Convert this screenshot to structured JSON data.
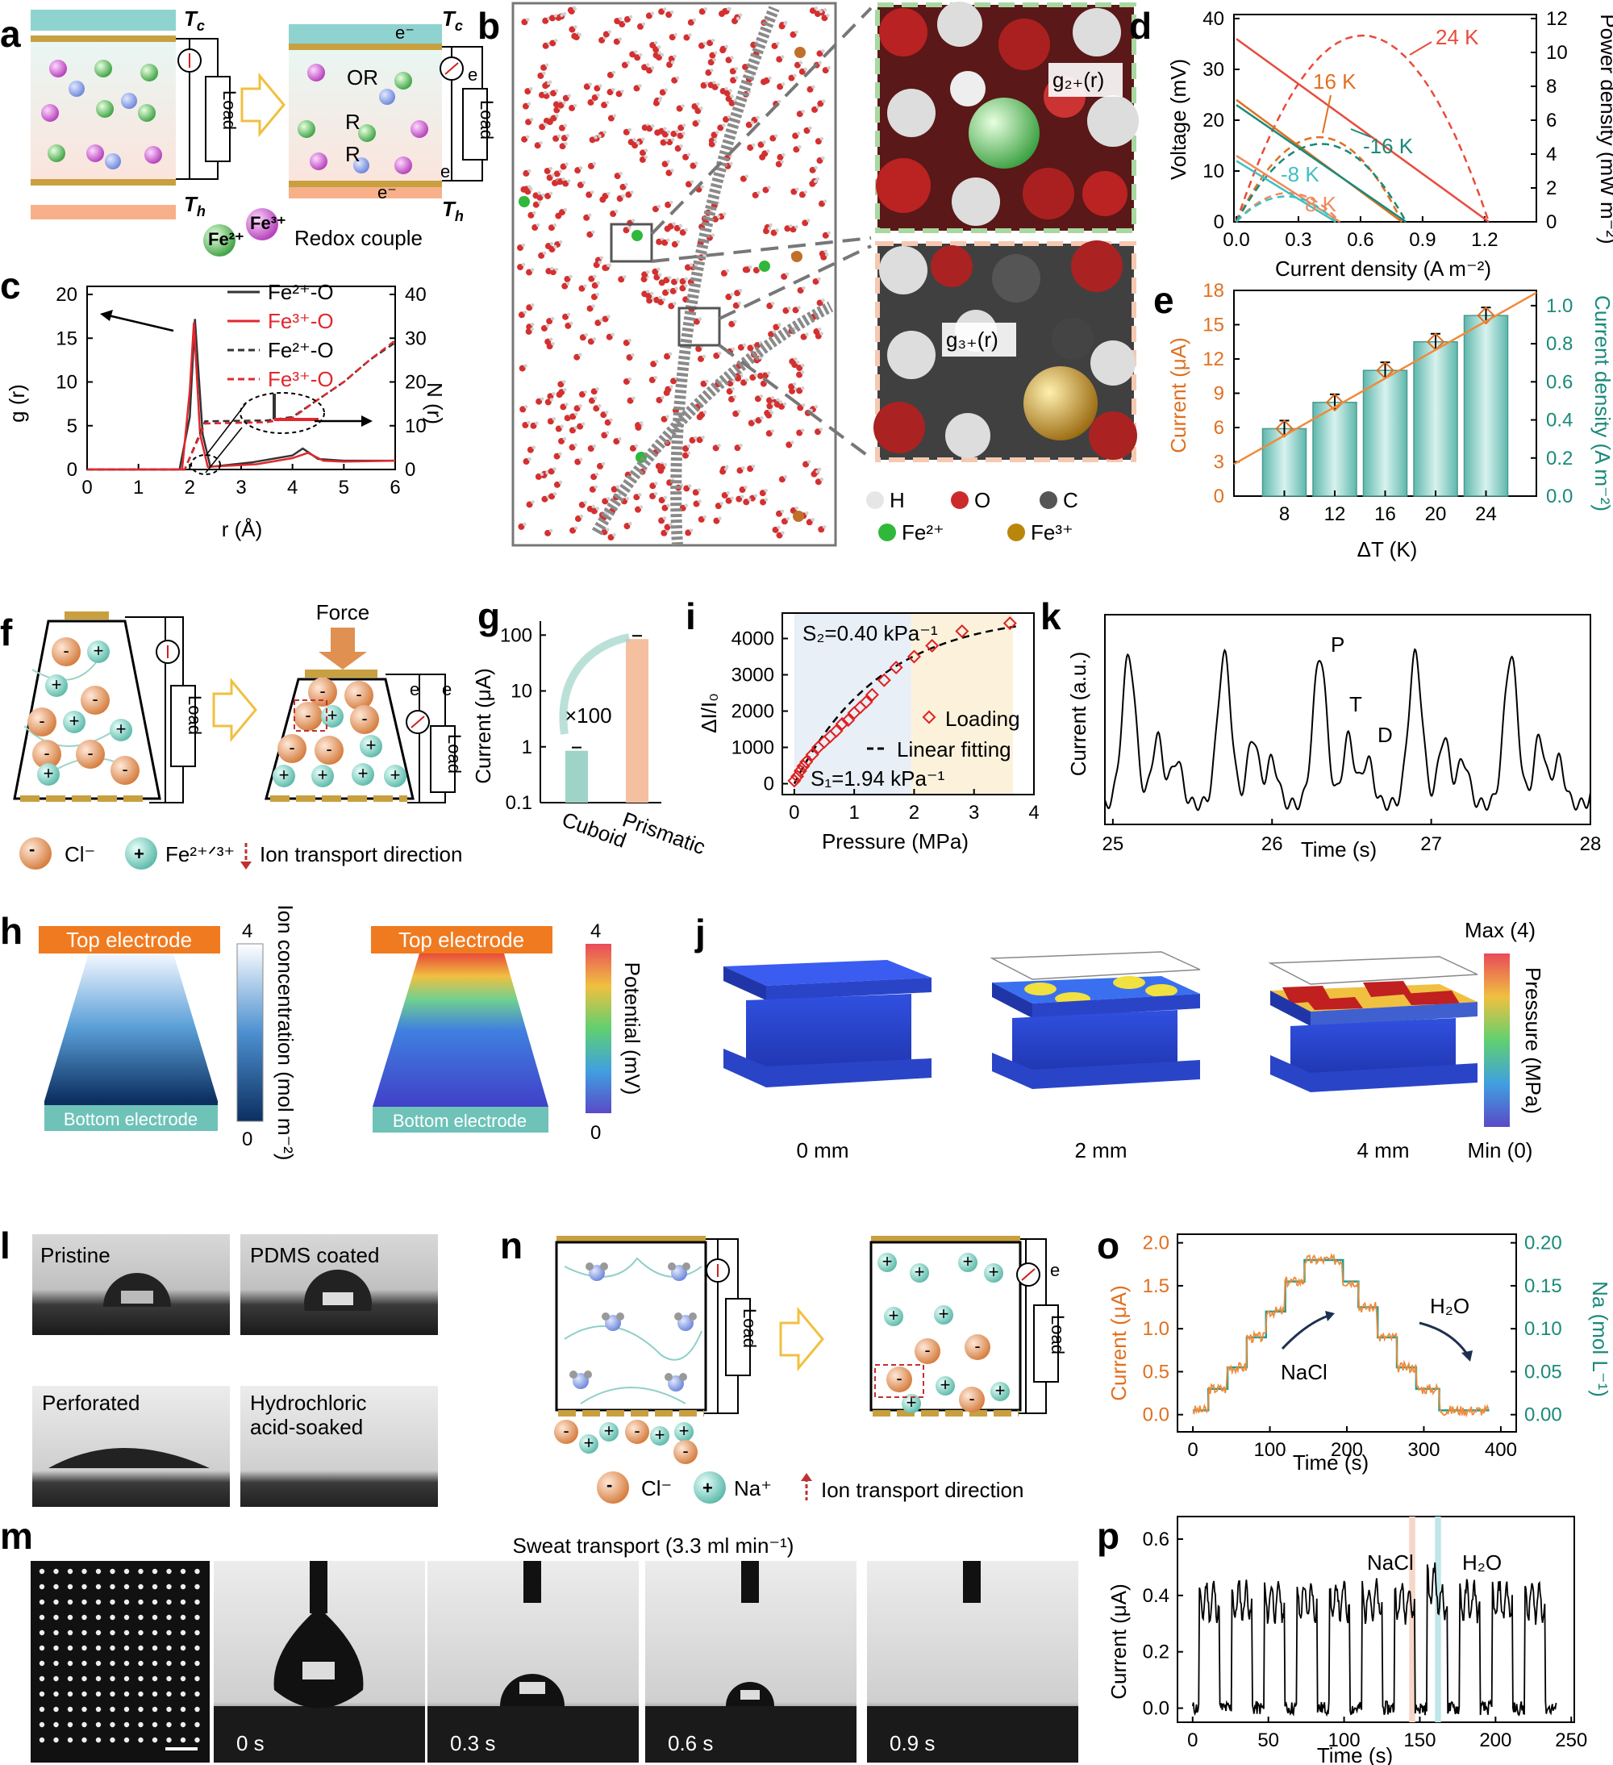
{
  "panels": {
    "a": {
      "label": "a",
      "tc": "T",
      "tc_sub": "c",
      "th": "T",
      "th_sub": "h",
      "load": "Load",
      "e_minus": "e⁻",
      "e": "e",
      "or": "OR",
      "r": "R",
      "fe2": "Fe²⁺",
      "fe3": "Fe³⁺",
      "redox": "Redox couple"
    },
    "b": {
      "label": "b",
      "g2": "g₂₊(r)",
      "g3": "g₃₊(r)",
      "legend": [
        {
          "sym": "H",
          "color": "#e6e6e6"
        },
        {
          "sym": "O",
          "color": "#cc2a2a"
        },
        {
          "sym": "C",
          "color": "#555555"
        },
        {
          "sym": "Fe²⁺",
          "color": "#2fb83a"
        },
        {
          "sym": "Fe³⁺",
          "color": "#b8860b"
        }
      ]
    },
    "c": {
      "label": "c",
      "xlabel": "r (Å)",
      "ylabel": "g (r)",
      "y2label": "N (r)",
      "legend": [
        {
          "text": "Fe²⁺-O",
          "color": "#333333",
          "dash": false
        },
        {
          "text": "Fe³⁺-O",
          "color": "#e0282e",
          "dash": false
        },
        {
          "text": "Fe²⁺-O",
          "color": "#333333",
          "dash": true
        },
        {
          "text": "Fe³⁺-O",
          "color": "#e0282e",
          "dash": true
        }
      ]
    },
    "d": {
      "label": "d",
      "xlabel": "Current density (A m⁻²)",
      "ylabel": "Voltage (mV)",
      "y2label": "Power density (mW m⁻²)",
      "annotations": [
        "24 K",
        "16 K",
        "-16 K",
        "8 K",
        "-8 K"
      ]
    },
    "e": {
      "label": "e",
      "xlabel": "ΔT (K)",
      "ylabel": "Current (μA)",
      "y2label": "Current density (A m⁻²)"
    },
    "f": {
      "label": "f",
      "force": "Force",
      "load": "Load",
      "e": "e",
      "cl": "Cl⁻",
      "fe": "Fe²⁺ᐟ³⁺",
      "dir": "Ion transport direction"
    },
    "g": {
      "label": "g",
      "ylabel": "Current (μA)",
      "factor": "×100"
    },
    "h": {
      "label": "h",
      "top": "Top electrode",
      "bottom": "Bottom electrode",
      "cb1": "Ion concentration (mol m⁻²)",
      "cb2": "Potential (mV)",
      "cb1_max": "4",
      "cb1_min": "0",
      "cb2_max": "4",
      "cb2_min": "0"
    },
    "i": {
      "label": "i",
      "xlabel": "Pressure (MPa)",
      "ylabel": "ΔI/I₀",
      "s2": "S₂=0.40 kPa⁻¹",
      "s1": "S₁=1.94 kPa⁻¹",
      "legend1": "Loading",
      "legend2": "Linear fitting"
    },
    "j": {
      "label": "j",
      "steps": [
        "0 mm",
        "2 mm",
        "4 mm"
      ],
      "cb_max": "Max (4)",
      "cb_min": "Min (0)",
      "cb_label": "Pressure (MPa)"
    },
    "k": {
      "label": "k",
      "xlabel": "Time (s)",
      "ylabel": "Current (a.u.)",
      "p": "P",
      "t": "T",
      "d": "D"
    },
    "l": {
      "label": "l",
      "captions": [
        "Pristine",
        "PDMS coated",
        "Perforated",
        "Hydrochloric acid-soaked"
      ]
    },
    "m": {
      "label": "m",
      "title": "Sweat transport (3.3 ml min⁻¹)",
      "times": [
        "0 s",
        "0.3 s",
        "0.6 s",
        "0.9 s"
      ]
    },
    "n": {
      "label": "n",
      "load": "Load",
      "e": "e",
      "cl": "Cl⁻",
      "na": "Na⁺",
      "dir": "Ion transport direction"
    },
    "o": {
      "label": "o",
      "xlabel": "Time (s)",
      "ylabel": "Current (μA)",
      "y2label": "Na (mol L⁻¹)",
      "nacl": "NaCl",
      "h2o": "H₂O"
    },
    "p": {
      "label": "p",
      "xlabel": "Time (s)",
      "ylabel": "Current (μA)",
      "nacl": "NaCl",
      "h2o": "H₂O"
    }
  },
  "chart_data": [
    {
      "panel": "c",
      "type": "line",
      "x_ticks": [
        0,
        1,
        2,
        3,
        4,
        5,
        6
      ],
      "y_ticks": [
        0,
        5,
        10,
        15,
        20
      ],
      "y2_ticks": [
        0,
        10,
        20,
        30,
        40
      ],
      "xlim": [
        0,
        6
      ],
      "ylim": [
        0,
        20
      ],
      "y2lim": [
        0,
        40
      ],
      "series": [
        {
          "name": "Fe²⁺-O",
          "axis": "left",
          "points": [
            [
              0,
              0
            ],
            [
              1.8,
              0
            ],
            [
              2.0,
              6
            ],
            [
              2.1,
              17.2
            ],
            [
              2.25,
              4
            ],
            [
              2.4,
              0.3
            ],
            [
              3.2,
              0.8
            ],
            [
              4.0,
              1.6
            ],
            [
              4.2,
              2.4
            ],
            [
              4.5,
              1.2
            ],
            [
              5,
              1
            ],
            [
              6,
              1
            ]
          ]
        },
        {
          "name": "Fe³⁺-O",
          "axis": "left",
          "points": [
            [
              0,
              0
            ],
            [
              1.85,
              0
            ],
            [
              2.0,
              9
            ],
            [
              2.08,
              16.8
            ],
            [
              2.2,
              4
            ],
            [
              2.35,
              0.3
            ],
            [
              3.3,
              0.6
            ],
            [
              4.0,
              1.3
            ],
            [
              4.3,
              1.9
            ],
            [
              4.6,
              1.0
            ],
            [
              5,
              0.9
            ],
            [
              6,
              1
            ]
          ]
        },
        {
          "name": "Fe²⁺-O",
          "axis": "right",
          "points": [
            [
              0,
              0
            ],
            [
              1.9,
              0
            ],
            [
              2.3,
              11
            ],
            [
              3.5,
              11.2
            ],
            [
              4.0,
              12
            ],
            [
              4.5,
              16
            ],
            [
              5,
              20
            ],
            [
              5.5,
              25
            ],
            [
              6,
              29
            ]
          ]
        },
        {
          "name": "Fe³⁺-O",
          "axis": "right",
          "points": [
            [
              0,
              0
            ],
            [
              1.9,
              0
            ],
            [
              2.3,
              10.5
            ],
            [
              3.5,
              10.8
            ],
            [
              4.0,
              11.8
            ],
            [
              4.5,
              16
            ],
            [
              5,
              20
            ],
            [
              5.5,
              25
            ],
            [
              6,
              29.5
            ]
          ]
        }
      ]
    },
    {
      "panel": "d",
      "type": "line",
      "x_ticks": [
        0.0,
        0.3,
        0.6,
        0.9,
        1.2
      ],
      "y_ticks": [
        0,
        10,
        20,
        30,
        40
      ],
      "y2_ticks": [
        0,
        2,
        4,
        6,
        8,
        10,
        12
      ],
      "xlim": [
        0,
        1.45
      ],
      "ylim": [
        0,
        40
      ],
      "y2lim": [
        0,
        12
      ],
      "series": [
        {
          "name": "24 K",
          "color": "#e84b3c",
          "voltage": [
            36,
            1.22
          ],
          "power_peak": 11.0
        },
        {
          "name": "16 K",
          "color": "#e07020",
          "voltage": [
            24,
            0.8
          ],
          "power_peak": 5.0
        },
        {
          "name": "-16 K",
          "color": "#1a8a7a",
          "voltage": [
            23,
            0.82
          ],
          "power_peak": 4.6
        },
        {
          "name": "8 K",
          "color": "#f08a5d",
          "voltage": [
            13,
            0.5
          ],
          "power_peak": 1.7
        },
        {
          "name": "-8 K",
          "color": "#40c0c0",
          "voltage": [
            12,
            0.48
          ],
          "power_peak": 1.5
        }
      ]
    },
    {
      "panel": "e",
      "type": "bar",
      "categories": [
        "8",
        "12",
        "16",
        "20",
        "24"
      ],
      "values": [
        5.9,
        8.2,
        11.0,
        13.5,
        15.8
      ],
      "y_ticks": [
        0,
        3,
        6,
        9,
        12,
        15,
        18
      ],
      "y2_ticks": [
        0.0,
        0.2,
        0.4,
        0.6,
        0.8,
        1.0
      ],
      "ylim": [
        0,
        18
      ]
    },
    {
      "panel": "g",
      "type": "bar",
      "categories": [
        "Cuboid",
        "Prismatic"
      ],
      "values": [
        0.85,
        85
      ],
      "y_ticks": [
        "0.1",
        "1",
        "10",
        "100"
      ],
      "log": true
    },
    {
      "panel": "i",
      "type": "scatter",
      "x_ticks": [
        0,
        1,
        2,
        3,
        4
      ],
      "y_ticks": [
        0,
        1000,
        2000,
        3000,
        4000
      ],
      "xlim": [
        -0.2,
        4
      ],
      "ylim": [
        -300,
        4700
      ],
      "points": [
        [
          0,
          80
        ],
        [
          0.05,
          200
        ],
        [
          0.1,
          350
        ],
        [
          0.15,
          480
        ],
        [
          0.2,
          600
        ],
        [
          0.3,
          800
        ],
        [
          0.4,
          1000
        ],
        [
          0.5,
          1150
        ],
        [
          0.6,
          1300
        ],
        [
          0.7,
          1450
        ],
        [
          0.8,
          1650
        ],
        [
          0.9,
          1750
        ],
        [
          1.0,
          1950
        ],
        [
          1.1,
          2100
        ],
        [
          1.2,
          2250
        ],
        [
          1.3,
          2450
        ],
        [
          1.5,
          2850
        ],
        [
          1.7,
          3200
        ],
        [
          2.0,
          3500
        ],
        [
          2.3,
          3800
        ],
        [
          2.8,
          4200
        ],
        [
          3.6,
          4420
        ]
      ]
    },
    {
      "panel": "k",
      "type": "line",
      "x_ticks": [
        25,
        26,
        27,
        28
      ],
      "xlim": [
        24.95,
        28
      ]
    },
    {
      "panel": "o",
      "type": "line",
      "x_ticks": [
        0,
        100,
        200,
        300,
        400
      ],
      "y_ticks": [
        0.0,
        0.5,
        1.0,
        1.5,
        2.0
      ],
      "y2_ticks": [
        0.0,
        0.05,
        0.1,
        0.15,
        0.2
      ],
      "xlim": [
        -20,
        420
      ],
      "ylim": [
        -0.2,
        2.1
      ]
    },
    {
      "panel": "p",
      "type": "line",
      "x_ticks": [
        0,
        50,
        100,
        150,
        200,
        250
      ],
      "y_ticks": [
        0.0,
        0.2,
        0.4,
        0.6
      ],
      "xlim": [
        -10,
        252
      ],
      "ylim": [
        -0.05,
        0.68
      ]
    }
  ]
}
